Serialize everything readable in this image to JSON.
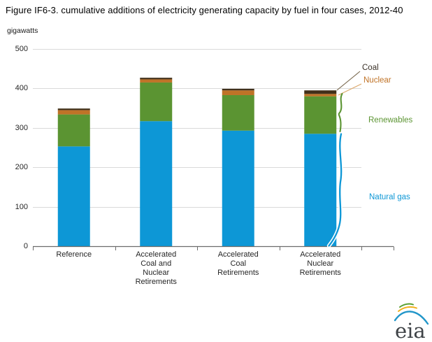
{
  "title": "Figure IF6-3. cumulative additions of electricity generating capacity by fuel in four cases, 2012-40",
  "unit_label": "gigawatts",
  "chart_data": {
    "type": "bar",
    "stacked": true,
    "title": "Figure IF6-3. cumulative additions of electricity generating capacity by fuel in four cases, 2012-40",
    "ylabel": "gigawatts",
    "xlabel": "",
    "ylim": [
      0,
      500
    ],
    "yticks": [
      0,
      100,
      200,
      300,
      400,
      500
    ],
    "grid": true,
    "legend_position": "right-annotations",
    "categories": [
      "Reference",
      "Accelerated Coal and Nuclear Retirements",
      "Accelerated Coal Retirements",
      "Accelerated Nuclear Retirements"
    ],
    "category_lines": [
      [
        "Reference"
      ],
      [
        "Accelerated",
        "Coal and",
        "Nuclear",
        "Retirements"
      ],
      [
        "Accelerated",
        "Coal",
        "Retirements"
      ],
      [
        "Accelerated",
        "Nuclear",
        "Retirements"
      ]
    ],
    "series": [
      {
        "name": "Natural gas",
        "color": "#0d97d6",
        "values": [
          253,
          317,
          293,
          285
        ]
      },
      {
        "name": "Renewables",
        "color": "#5b9432",
        "values": [
          81,
          98,
          90,
          95
        ]
      },
      {
        "name": "Nuclear",
        "color": "#bf7327",
        "values": [
          11,
          8,
          12,
          6
        ]
      },
      {
        "name": "Coal",
        "color": "#41301a",
        "values": [
          4,
          4,
          4,
          9
        ]
      }
    ],
    "totals": [
      349,
      427,
      399,
      395
    ],
    "gridline_color": "#d9d9d9",
    "axis_color": "#6b6b6b"
  },
  "annotations": {
    "coal": {
      "label": "Coal",
      "color": "#3a3128",
      "line_color": "#7a6a50"
    },
    "nuclear": {
      "label": "Nuclear",
      "color": "#c07327",
      "line_color": "#dca76a"
    },
    "renewables": {
      "label": "Renewables",
      "color": "#5b9432",
      "line_color": "#5b9432"
    },
    "natural_gas": {
      "label": "Natural gas",
      "color": "#0d97d6",
      "line_color": "#0d97d6"
    }
  },
  "logo": {
    "text": "eia"
  }
}
